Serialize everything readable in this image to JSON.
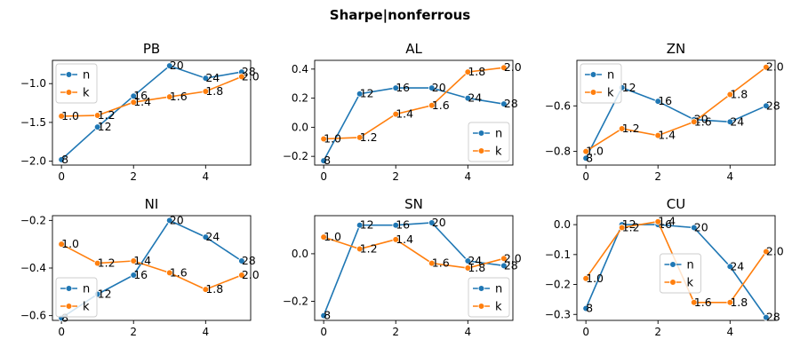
{
  "figure": {
    "title": "Sharpe|nonferrous"
  },
  "colors": {
    "n": "#1f77b4",
    "k": "#ff7f0e"
  },
  "chart_data": [
    {
      "type": "line",
      "title": "PB",
      "x": [
        0,
        1,
        2,
        3,
        4,
        5
      ],
      "xlim": [
        -0.25,
        5.25
      ],
      "ylim": [
        -2.05,
        -0.7
      ],
      "xticks": [
        0,
        2,
        4
      ],
      "yticks": [
        -2.0,
        -1.5,
        -1.0
      ],
      "ytick_labels": [
        "−2.0",
        "−1.5",
        "−1.0"
      ],
      "legend": "upper-left",
      "series": [
        {
          "name": "n",
          "values": [
            -1.98,
            -1.56,
            -1.16,
            -0.77,
            -0.93,
            -0.85
          ],
          "labels": [
            "8",
            "12",
            "16",
            "20",
            "24",
            "28"
          ]
        },
        {
          "name": "k",
          "values": [
            -1.42,
            -1.41,
            -1.24,
            -1.17,
            -1.1,
            -0.91
          ],
          "labels": [
            "1.0",
            "1.2",
            "1.4",
            "1.6",
            "1.8",
            "2.0"
          ]
        }
      ]
    },
    {
      "type": "line",
      "title": "AL",
      "x": [
        0,
        1,
        2,
        3,
        4,
        5
      ],
      "xlim": [
        -0.25,
        5.25
      ],
      "ylim": [
        -0.26,
        0.46
      ],
      "xticks": [
        0,
        2,
        4
      ],
      "yticks": [
        -0.2,
        0.0,
        0.2,
        0.4
      ],
      "ytick_labels": [
        "−0.2",
        "0.0",
        "0.2",
        "0.4"
      ],
      "legend": "lower-right",
      "series": [
        {
          "name": "n",
          "values": [
            -0.23,
            0.23,
            0.27,
            0.27,
            0.2,
            0.16
          ],
          "labels": [
            "8",
            "12",
            "16",
            "20",
            "24",
            "28"
          ]
        },
        {
          "name": "k",
          "values": [
            -0.08,
            -0.07,
            0.09,
            0.15,
            0.38,
            0.41
          ],
          "labels": [
            "1.0",
            "1.2",
            "1.4",
            "1.6",
            "1.8",
            "2.0"
          ]
        }
      ]
    },
    {
      "type": "line",
      "title": "ZN",
      "x": [
        0,
        1,
        2,
        3,
        4,
        5
      ],
      "xlim": [
        -0.25,
        5.25
      ],
      "ylim": [
        -0.86,
        -0.4
      ],
      "xticks": [
        0,
        2,
        4
      ],
      "yticks": [
        -0.8,
        -0.6
      ],
      "ytick_labels": [
        "−0.8",
        "−0.6"
      ],
      "legend": "upper-left",
      "series": [
        {
          "name": "n",
          "values": [
            -0.83,
            -0.52,
            -0.58,
            -0.66,
            -0.67,
            -0.6
          ],
          "labels": [
            "8",
            "12",
            "16",
            "20",
            "24",
            "28"
          ]
        },
        {
          "name": "k",
          "values": [
            -0.8,
            -0.7,
            -0.73,
            -0.67,
            -0.55,
            -0.43
          ],
          "labels": [
            "1.0",
            "1.2",
            "1.4",
            "1.6",
            "1.8",
            "2.0"
          ]
        }
      ]
    },
    {
      "type": "line",
      "title": "NI",
      "x": [
        0,
        1,
        2,
        3,
        4,
        5
      ],
      "xlim": [
        -0.25,
        5.25
      ],
      "ylim": [
        -0.62,
        -0.18
      ],
      "xticks": [
        0,
        2,
        4
      ],
      "yticks": [
        -0.6,
        -0.4,
        -0.2
      ],
      "ytick_labels": [
        "−0.6",
        "−0.4",
        "−0.2"
      ],
      "legend": "lower-left",
      "series": [
        {
          "name": "n",
          "values": [
            -0.61,
            -0.51,
            -0.43,
            -0.2,
            -0.27,
            -0.37
          ],
          "labels": [
            "8",
            "12",
            "16",
            "20",
            "24",
            "28"
          ]
        },
        {
          "name": "k",
          "values": [
            -0.3,
            -0.38,
            -0.37,
            -0.42,
            -0.49,
            -0.43
          ],
          "labels": [
            "1.0",
            "1.2",
            "1.4",
            "1.6",
            "1.8",
            "2.0"
          ]
        }
      ]
    },
    {
      "type": "line",
      "title": "SN",
      "x": [
        0,
        1,
        2,
        3,
        4,
        5
      ],
      "xlim": [
        -0.25,
        5.25
      ],
      "ylim": [
        -0.28,
        0.16
      ],
      "xticks": [
        0,
        2,
        4
      ],
      "yticks": [
        -0.2,
        0.0
      ],
      "ytick_labels": [
        "−0.2",
        "0.0"
      ],
      "legend": "lower-right",
      "series": [
        {
          "name": "n",
          "values": [
            -0.26,
            0.12,
            0.12,
            0.13,
            -0.03,
            -0.05
          ],
          "labels": [
            "8",
            "12",
            "16",
            "20",
            "24",
            "28"
          ]
        },
        {
          "name": "k",
          "values": [
            0.07,
            0.02,
            0.06,
            -0.04,
            -0.06,
            -0.02
          ],
          "labels": [
            "1.0",
            "1.2",
            "1.4",
            "1.6",
            "1.8",
            "2.0"
          ]
        }
      ]
    },
    {
      "type": "line",
      "title": "CU",
      "x": [
        0,
        1,
        2,
        3,
        4,
        5
      ],
      "xlim": [
        -0.25,
        5.25
      ],
      "ylim": [
        -0.32,
        0.03
      ],
      "xticks": [
        0,
        2,
        4
      ],
      "yticks": [
        -0.3,
        -0.2,
        -0.1,
        0.0
      ],
      "ytick_labels": [
        "−0.3",
        "−0.2",
        "−0.1",
        "0.0"
      ],
      "legend": "center",
      "series": [
        {
          "name": "n",
          "values": [
            -0.28,
            0.0,
            0.0,
            -0.01,
            -0.14,
            -0.31
          ],
          "labels": [
            "8",
            "12",
            "16",
            "20",
            "24",
            "28"
          ]
        },
        {
          "name": "k",
          "values": [
            -0.18,
            -0.01,
            0.01,
            -0.26,
            -0.26,
            -0.09
          ],
          "labels": [
            "1.0",
            "1.2",
            "1.4",
            "1.6",
            "1.8",
            "2.0"
          ]
        }
      ]
    }
  ]
}
